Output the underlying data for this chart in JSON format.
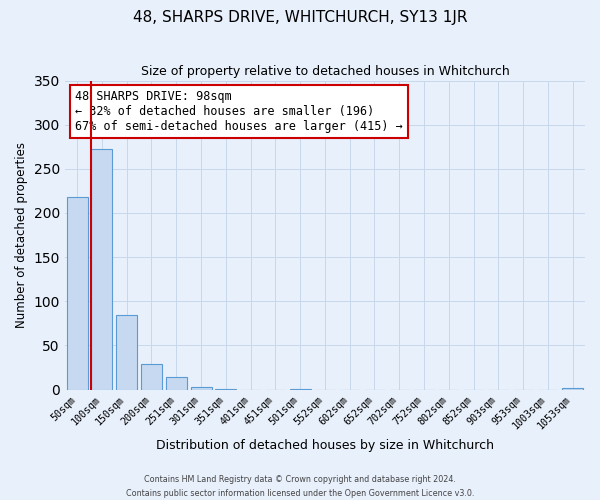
{
  "title": "48, SHARPS DRIVE, WHITCHURCH, SY13 1JR",
  "subtitle": "Size of property relative to detached houses in Whitchurch",
  "xlabel": "Distribution of detached houses by size in Whitchurch",
  "ylabel": "Number of detached properties",
  "bar_labels": [
    "50sqm",
    "100sqm",
    "150sqm",
    "200sqm",
    "251sqm",
    "301sqm",
    "351sqm",
    "401sqm",
    "451sqm",
    "501sqm",
    "552sqm",
    "602sqm",
    "652sqm",
    "702sqm",
    "752sqm",
    "802sqm",
    "852sqm",
    "903sqm",
    "953sqm",
    "1003sqm",
    "1053sqm"
  ],
  "bar_values": [
    218,
    273,
    84,
    29,
    14,
    3,
    1,
    0,
    0,
    1,
    0,
    0,
    0,
    0,
    0,
    0,
    0,
    0,
    0,
    0,
    2
  ],
  "bar_color": "#c6d9f0",
  "bar_edge_color": "#5b9bd5",
  "grid_color": "#c8d8ec",
  "bg_color": "#e8f0fb",
  "vline_color": "#cc0000",
  "annotation_text": "48 SHARPS DRIVE: 98sqm\n← 32% of detached houses are smaller (196)\n67% of semi-detached houses are larger (415) →",
  "annotation_box_color": "#ffffff",
  "annotation_box_edge": "#cc0000",
  "ylim": [
    0,
    350
  ],
  "yticks": [
    0,
    50,
    100,
    150,
    200,
    250,
    300,
    350
  ],
  "footer_line1": "Contains HM Land Registry data © Crown copyright and database right 2024.",
  "footer_line2": "Contains public sector information licensed under the Open Government Licence v3.0."
}
